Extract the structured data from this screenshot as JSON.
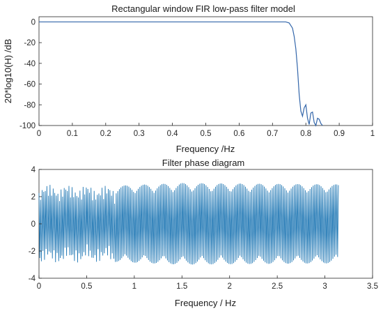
{
  "chart_data": [
    {
      "type": "line",
      "title": "Rectangular window FIR low-pass filter model",
      "xlabel": "Frequency /Hz",
      "ylabel": "20*log10(H) /dB",
      "xlim": [
        0,
        1
      ],
      "ylim": [
        -100,
        5
      ],
      "xticks": [
        "0",
        "0.1",
        "0.2",
        "0.3",
        "0.4",
        "0.5",
        "0.6",
        "0.7",
        "0.8",
        "0.9",
        "1"
      ],
      "yticks": [
        "0",
        "-20",
        "-40",
        "-60",
        "-80",
        "-100"
      ],
      "grid": false,
      "series_color": "#3366aa",
      "x": [
        0,
        0.1,
        0.2,
        0.3,
        0.4,
        0.5,
        0.6,
        0.7,
        0.74,
        0.75,
        0.76,
        0.765,
        0.77,
        0.775,
        0.78,
        0.785,
        0.79,
        0.795,
        0.8,
        0.805,
        0.81,
        0.815,
        0.82,
        0.825,
        0.83,
        0.835,
        0.84,
        0.845,
        0.85
      ],
      "y": [
        0,
        0,
        0,
        0,
        0,
        0,
        0,
        0,
        0,
        -1,
        -6,
        -14,
        -26,
        -45,
        -70,
        -86,
        -91,
        -83,
        -80,
        -93,
        -99,
        -88,
        -87,
        -97,
        -100,
        -93,
        -94,
        -98,
        -100
      ]
    },
    {
      "type": "line",
      "title": "Filter phase diagram",
      "xlabel": "Frequency / Hz",
      "ylabel": "",
      "xlim": [
        0,
        3.5
      ],
      "ylim": [
        -4,
        4
      ],
      "xticks": [
        "0",
        "0.5",
        "1",
        "1.5",
        "2",
        "2.5",
        "3",
        "3.5"
      ],
      "yticks": [
        "4",
        "2",
        "0",
        "-2",
        "-4"
      ],
      "grid": false,
      "series_color": "#1f77b4",
      "x_range": [
        0,
        3.1416
      ],
      "amplitude_envelope": [
        [
          0,
          2.9
        ],
        [
          0.8,
          2.8
        ],
        [
          1.5,
          3.0
        ],
        [
          3.1416,
          2.9
        ]
      ],
      "oscillation_note_count": 190
    }
  ]
}
